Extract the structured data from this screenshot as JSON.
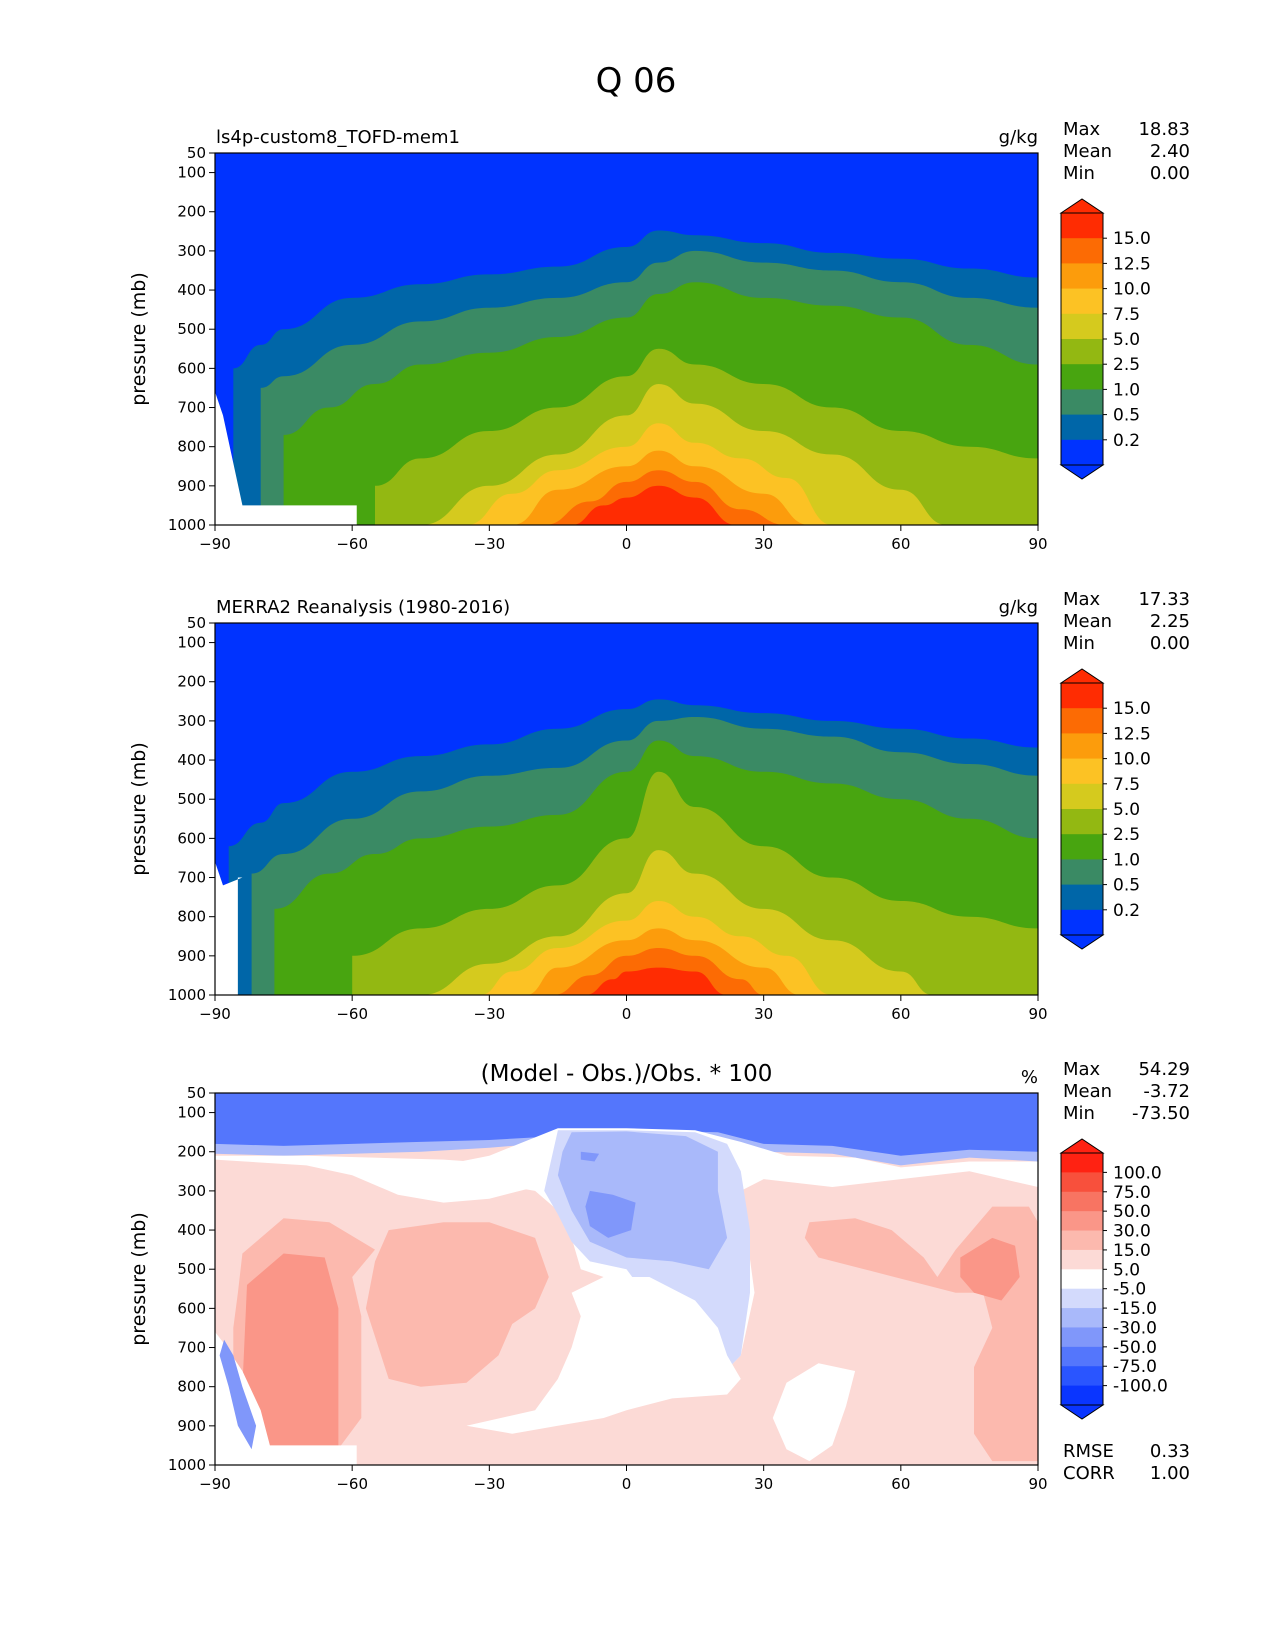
{
  "figure_title": "Q 06",
  "colors": {
    "clim": [
      "#0033ff",
      "#0066a8",
      "#3a8a64",
      "#48a510",
      "#93b812",
      "#d5ca1e",
      "#fcc224",
      "#fc9c0c",
      "#fc6b04",
      "#ff2c02"
    ],
    "diff": [
      "#0a35ff",
      "#2a55ff",
      "#5476fc",
      "#8097fa",
      "#a9b9fa",
      "#d3dafc",
      "#ffffff",
      "#fcdad6",
      "#fcb9ae",
      "#fa9688",
      "#f87462",
      "#f8503c",
      "#ff2212"
    ]
  },
  "chart_data": [
    {
      "type": "contour",
      "panel": "model",
      "left_title": "ls4p-custom8_TOFD-mem1",
      "units": "g/kg",
      "ylabel": "pressure (mb)",
      "xlim": [
        -90,
        90
      ],
      "ylim": [
        50,
        1000
      ],
      "xticks": [
        "−90",
        "−60",
        "−30",
        "0",
        "30",
        "60",
        "90"
      ],
      "yticks": [
        "50",
        "100",
        "200",
        "300",
        "400",
        "500",
        "600",
        "700",
        "800",
        "900",
        "1000"
      ],
      "stats": [
        {
          "label": "Max",
          "value": "18.83"
        },
        {
          "label": "Mean",
          "value": "2.40"
        },
        {
          "label": "Min",
          "value": "0.00"
        }
      ],
      "colorbar_levels": [
        "15.0",
        "12.5",
        "10.0",
        "7.5",
        "5.0",
        "2.5",
        "1.0",
        "0.5",
        "0.2"
      ],
      "contour_tops_hPa": [
        {
          "level": "0.2",
          "lat": [
            -86,
            -80,
            -75,
            -60,
            -45,
            -30,
            -15,
            0,
            7,
            15,
            30,
            45,
            60,
            75,
            90
          ],
          "p": [
            600,
            540,
            500,
            420,
            385,
            360,
            340,
            290,
            248,
            260,
            280,
            305,
            320,
            345,
            368
          ]
        },
        {
          "level": "0.5",
          "lat": [
            -80,
            -75,
            -60,
            -45,
            -30,
            -15,
            0,
            7,
            15,
            30,
            45,
            60,
            75,
            90
          ],
          "p": [
            650,
            620,
            540,
            480,
            445,
            420,
            380,
            330,
            300,
            330,
            350,
            380,
            420,
            445
          ]
        },
        {
          "level": "1.0",
          "lat": [
            -75,
            -65,
            -55,
            -45,
            -30,
            -15,
            0,
            7,
            15,
            30,
            45,
            60,
            75,
            90
          ],
          "p": [
            770,
            700,
            640,
            590,
            560,
            520,
            470,
            410,
            380,
            420,
            440,
            470,
            540,
            590
          ]
        },
        {
          "level": "2.5",
          "lat": [
            -55,
            -45,
            -30,
            -15,
            0,
            7,
            15,
            30,
            45,
            60,
            75,
            90
          ],
          "p": [
            900,
            830,
            760,
            700,
            620,
            550,
            590,
            640,
            700,
            760,
            800,
            830
          ]
        },
        {
          "level": "5.0",
          "lat": [
            -45,
            -30,
            -15,
            0,
            7,
            15,
            30,
            45,
            60,
            70
          ],
          "p": [
            1000,
            900,
            820,
            720,
            640,
            690,
            760,
            820,
            910,
            1000
          ]
        },
        {
          "level": "7.5",
          "lat": [
            -35,
            -25,
            -15,
            0,
            7,
            15,
            25,
            35,
            45
          ],
          "p": [
            1000,
            920,
            860,
            800,
            740,
            790,
            830,
            880,
            1000
          ]
        },
        {
          "level": "10.0",
          "lat": [
            -25,
            -15,
            0,
            7,
            15,
            30,
            40
          ],
          "p": [
            1000,
            910,
            850,
            810,
            850,
            920,
            1000
          ]
        },
        {
          "level": "12.5",
          "lat": [
            -18,
            -8,
            0,
            7,
            15,
            25,
            35
          ],
          "p": [
            1000,
            940,
            890,
            860,
            890,
            960,
            1000
          ]
        },
        {
          "level": "15.0",
          "lat": [
            -12,
            -5,
            0,
            7,
            15,
            24
          ],
          "p": [
            1000,
            950,
            930,
            900,
            930,
            1000
          ]
        }
      ]
    },
    {
      "type": "contour",
      "panel": "obs",
      "left_title": "MERRA2 Reanalysis (1980-2016)",
      "units": "g/kg",
      "ylabel": "pressure (mb)",
      "xlim": [
        -90,
        90
      ],
      "ylim": [
        50,
        1000
      ],
      "xticks": [
        "−90",
        "−60",
        "−30",
        "0",
        "30",
        "60",
        "90"
      ],
      "yticks": [
        "50",
        "100",
        "200",
        "300",
        "400",
        "500",
        "600",
        "700",
        "800",
        "900",
        "1000"
      ],
      "stats": [
        {
          "label": "Max",
          "value": "17.33"
        },
        {
          "label": "Mean",
          "value": "2.25"
        },
        {
          "label": "Min",
          "value": "0.00"
        }
      ],
      "colorbar_levels": [
        "15.0",
        "12.5",
        "10.0",
        "7.5",
        "5.0",
        "2.5",
        "1.0",
        "0.5",
        "0.2"
      ],
      "contour_tops_hPa": [
        {
          "level": "0.2",
          "lat": [
            -87,
            -80,
            -75,
            -60,
            -45,
            -30,
            -15,
            0,
            7,
            15,
            30,
            45,
            60,
            75,
            90
          ],
          "p": [
            620,
            560,
            510,
            430,
            390,
            360,
            320,
            270,
            245,
            260,
            280,
            300,
            320,
            345,
            368
          ]
        },
        {
          "level": "0.5",
          "lat": [
            -82,
            -75,
            -60,
            -45,
            -30,
            -15,
            0,
            7,
            15,
            30,
            45,
            60,
            75,
            90
          ],
          "p": [
            690,
            640,
            550,
            480,
            440,
            420,
            350,
            300,
            290,
            320,
            340,
            380,
            410,
            440
          ]
        },
        {
          "level": "1.0",
          "lat": [
            -77,
            -65,
            -55,
            -45,
            -30,
            -15,
            0,
            7,
            15,
            30,
            45,
            60,
            75,
            90
          ],
          "p": [
            780,
            690,
            640,
            600,
            570,
            540,
            430,
            350,
            390,
            430,
            460,
            500,
            550,
            600
          ]
        },
        {
          "level": "2.5",
          "lat": [
            -60,
            -45,
            -30,
            -15,
            0,
            7,
            15,
            30,
            45,
            60,
            75,
            90
          ],
          "p": [
            900,
            830,
            780,
            720,
            600,
            430,
            520,
            620,
            700,
            760,
            800,
            830
          ]
        },
        {
          "level": "5.0",
          "lat": [
            -45,
            -30,
            -15,
            0,
            7,
            15,
            30,
            45,
            60,
            67
          ],
          "p": [
            1000,
            920,
            850,
            740,
            630,
            690,
            780,
            860,
            940,
            1000
          ]
        },
        {
          "level": "7.5",
          "lat": [
            -32,
            -25,
            -15,
            0,
            7,
            15,
            25,
            35,
            45
          ],
          "p": [
            1000,
            940,
            880,
            810,
            760,
            800,
            850,
            900,
            1000
          ]
        },
        {
          "level": "10.0",
          "lat": [
            -22,
            -15,
            0,
            7,
            15,
            30,
            38
          ],
          "p": [
            1000,
            930,
            860,
            830,
            860,
            930,
            1000
          ]
        },
        {
          "level": "12.5",
          "lat": [
            -16,
            -8,
            0,
            7,
            15,
            25,
            30
          ],
          "p": [
            1000,
            950,
            900,
            880,
            900,
            960,
            1000
          ]
        },
        {
          "level": "15.0",
          "lat": [
            -9,
            -3,
            0,
            7,
            15,
            22
          ],
          "p": [
            1000,
            960,
            940,
            930,
            940,
            1000
          ]
        }
      ]
    },
    {
      "type": "contour",
      "panel": "diff",
      "center_title": "(Model - Obs.)/Obs. * 100",
      "units": "%",
      "ylabel": "pressure (mb)",
      "xlim": [
        -90,
        90
      ],
      "ylim": [
        50,
        1000
      ],
      "xticks": [
        "−90",
        "−60",
        "−30",
        "0",
        "30",
        "60",
        "90"
      ],
      "yticks": [
        "50",
        "100",
        "200",
        "300",
        "400",
        "500",
        "600",
        "700",
        "800",
        "900",
        "1000"
      ],
      "stats": [
        {
          "label": "Max",
          "value": "54.29"
        },
        {
          "label": "Mean",
          "value": "-3.72"
        },
        {
          "label": "Min",
          "value": "-73.50"
        }
      ],
      "metrics": [
        {
          "label": "RMSE",
          "value": "0.33"
        },
        {
          "label": "CORR",
          "value": "1.00"
        }
      ],
      "colorbar_levels": [
        "100.0",
        "75.0",
        "50.0",
        "30.0",
        "15.0",
        "5.0",
        "-5.0",
        "-15.0",
        "-30.0",
        "-50.0",
        "-75.0",
        "-100.0"
      ]
    }
  ]
}
